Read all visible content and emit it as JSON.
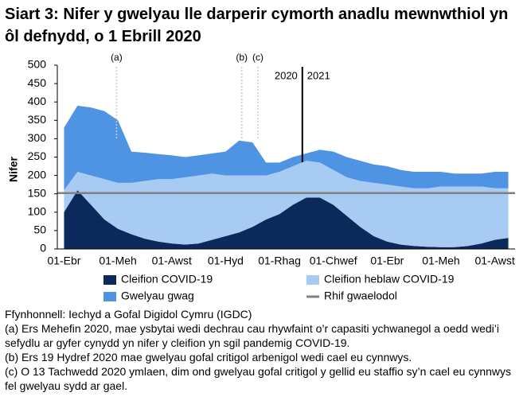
{
  "chart_data": {
    "type": "stacked-area",
    "title": "Siart 3: Nifer y gwelyau lle darperir cymorth anadlu mewnwthiol yn ôl defnydd, o 1 Ebrill 2020",
    "y_label": "Nifer",
    "categories": [
      "01-Ebr",
      null,
      null,
      null,
      "01-Meh",
      null,
      null,
      null,
      "01-Awst",
      null,
      null,
      null,
      "01-Hyd",
      null,
      null,
      null,
      "01-Rhag",
      null,
      null,
      null,
      "01-Chwef",
      null,
      null,
      null,
      "01-Ebr",
      null,
      null,
      null,
      "01-Meh",
      null,
      null,
      null,
      "01-Awst",
      null
    ],
    "series": [
      {
        "name": "Cleifion COVID-19",
        "color": "#0b2a5b",
        "values": [
          100,
          160,
          120,
          80,
          55,
          40,
          28,
          20,
          15,
          12,
          15,
          25,
          35,
          45,
          60,
          80,
          95,
          120,
          140,
          140,
          120,
          90,
          60,
          35,
          20,
          12,
          8,
          6,
          5,
          5,
          8,
          15,
          25,
          30
        ]
      },
      {
        "name": "Cleifion heblaw COVID-19",
        "color": "#a7cbf2",
        "values": [
          60,
          50,
          80,
          110,
          125,
          140,
          157,
          170,
          175,
          183,
          185,
          180,
          165,
          155,
          140,
          120,
          115,
          105,
          100,
          95,
          95,
          105,
          125,
          145,
          155,
          158,
          157,
          159,
          165,
          165,
          162,
          155,
          140,
          135
        ]
      },
      {
        "name": "Gwelyau gwag",
        "color": "#4f94e3",
        "values": [
          170,
          180,
          185,
          185,
          170,
          85,
          77,
          68,
          65,
          55,
          55,
          55,
          65,
          95,
          90,
          35,
          25,
          25,
          20,
          35,
          50,
          55,
          55,
          50,
          50,
          45,
          45,
          45,
          40,
          35,
          35,
          35,
          45,
          45
        ]
      }
    ],
    "baseline": {
      "name": "Rhif gwaelodol",
      "value": 152,
      "color": "#808080"
    },
    "annotations": [
      "(a)",
      "(b)",
      "(c)"
    ],
    "year_labels": [
      "2020",
      "2021"
    ],
    "ylim": [
      0,
      500
    ],
    "yticks": [
      0,
      50,
      100,
      150,
      200,
      250,
      300,
      350,
      400,
      450,
      500
    ],
    "source": "Ffynhonnell: Iechyd a Gofal Digidol Cymru (IGDC)",
    "notes": [
      "(a) Ers Mehefin 2020, mae ysbytai wedi dechrau cau rhywfaint o’r capasiti ychwanegol a oedd wedi’i sefydlu ar gyfer cynydd yn nifer y cleifion yn sgil pandemig COVID-19.",
      "(b) Ers 19 Hydref 2020 mae gwelyau gofal critigol arbenigol wedi cael eu cynnwys.",
      "(c) O 13 Tachwedd 2020 ymlaen, dim ond gwelyau gofal critigol y gellid eu staffio sy’n cael eu cynnwys fel gwelyau sydd ar gael."
    ]
  }
}
